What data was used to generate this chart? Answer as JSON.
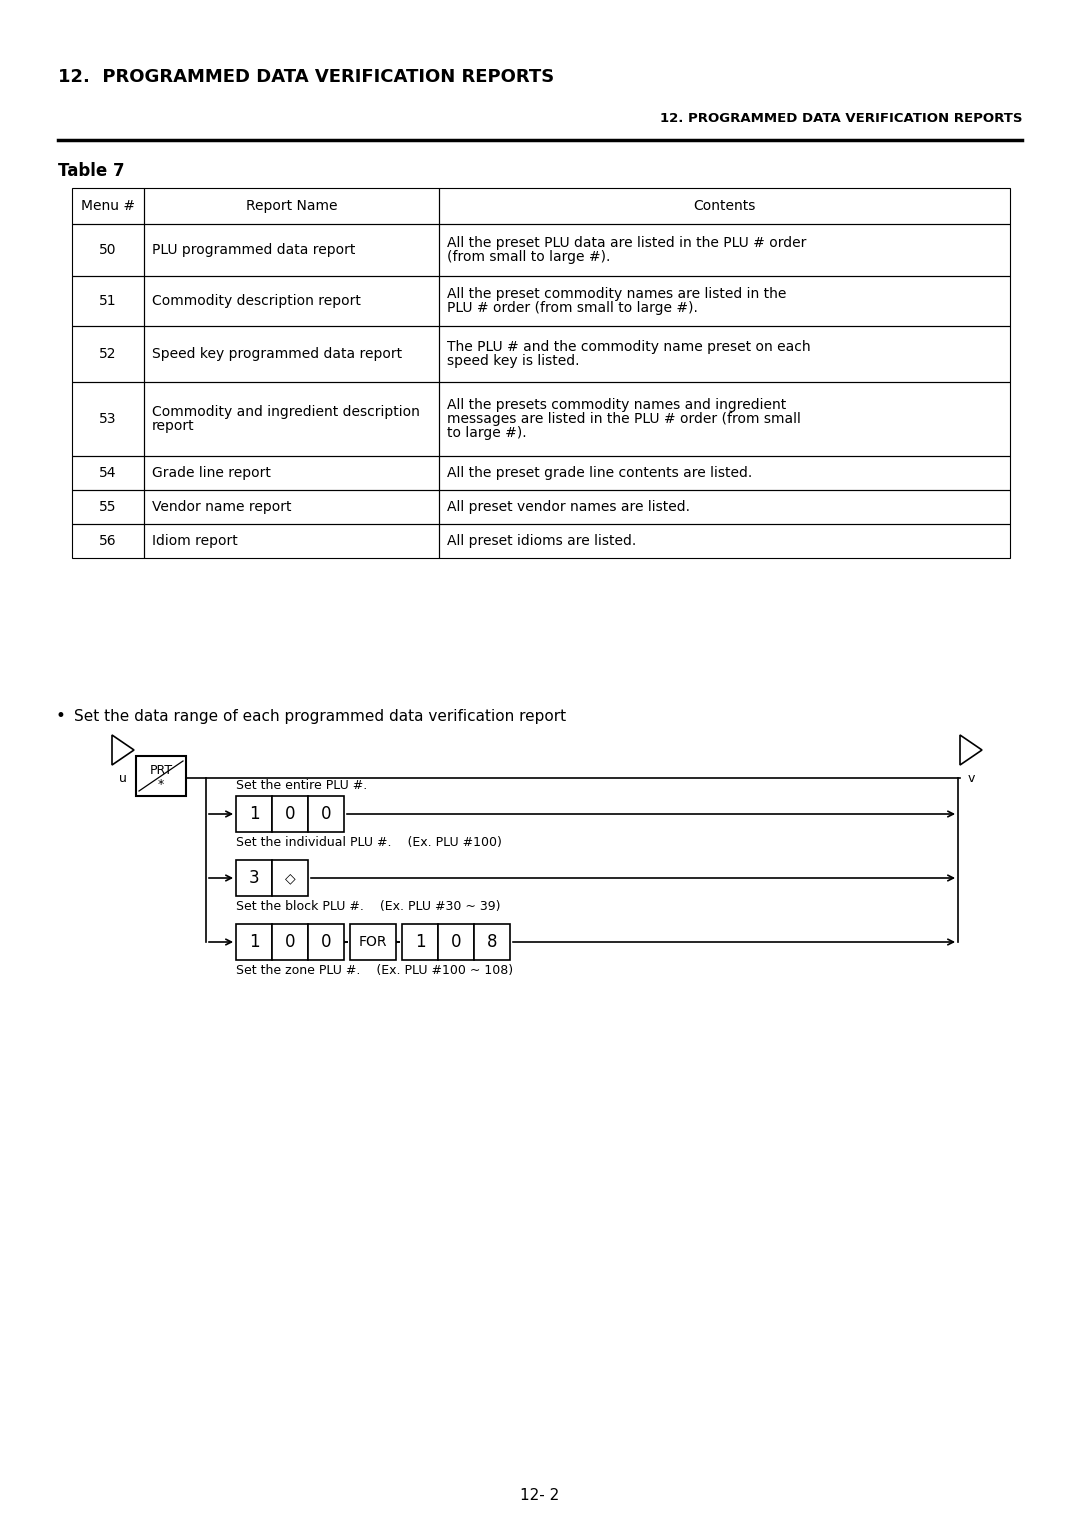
{
  "title_left": "12.  PROGRAMMED DATA VERIFICATION REPORTS",
  "title_right": "12. PROGRAMMED DATA VERIFICATION REPORTS",
  "table_title": "Table 7",
  "table_headers": [
    "Menu #",
    "Report Name",
    "Contents"
  ],
  "table_rows": [
    [
      "50",
      "PLU programmed data report",
      [
        "All the preset PLU data are listed in the PLU # order",
        "(from small to large #)."
      ]
    ],
    [
      "51",
      "Commodity description report",
      [
        "All the preset commodity names are listed in the",
        "PLU # order (from small to large #)."
      ]
    ],
    [
      "52",
      "Speed key programmed data report",
      [
        "The PLU # and the commodity name preset on each",
        "speed key is listed."
      ]
    ],
    [
      "53",
      [
        "Commodity and ingredient description",
        "report"
      ],
      [
        "All the presets commodity names and ingredient",
        "messages are listed in the PLU # order (from small",
        "to large #)."
      ]
    ],
    [
      "54",
      "Grade line report",
      [
        "All the preset grade line contents are listed."
      ]
    ],
    [
      "55",
      "Vendor name report",
      [
        "All preset vendor names are listed."
      ]
    ],
    [
      "56",
      "Idiom report",
      [
        "All preset idioms are listed."
      ]
    ]
  ],
  "bullet_text": "Set the data range of each programmed data verification report",
  "label_entire": "Set the entire PLU #.",
  "label_individual": "Set the individual PLU #.    (Ex. PLU #100)",
  "label_block": "Set the block PLU #.    (Ex. PLU #30 ~ 39)",
  "label_zone": "Set the zone PLU #.    (Ex. PLU #100 ~ 108)",
  "row1_boxes": [
    "1",
    "0",
    "0"
  ],
  "row2_boxes": [
    "3",
    "◇"
  ],
  "row3_boxes_left": [
    "1",
    "0",
    "0"
  ],
  "row3_for": "FOR",
  "row3_boxes_right": [
    "1",
    "0",
    "8"
  ],
  "page_number": "12- 2",
  "bg_color": "#ffffff",
  "text_color": "#000000"
}
